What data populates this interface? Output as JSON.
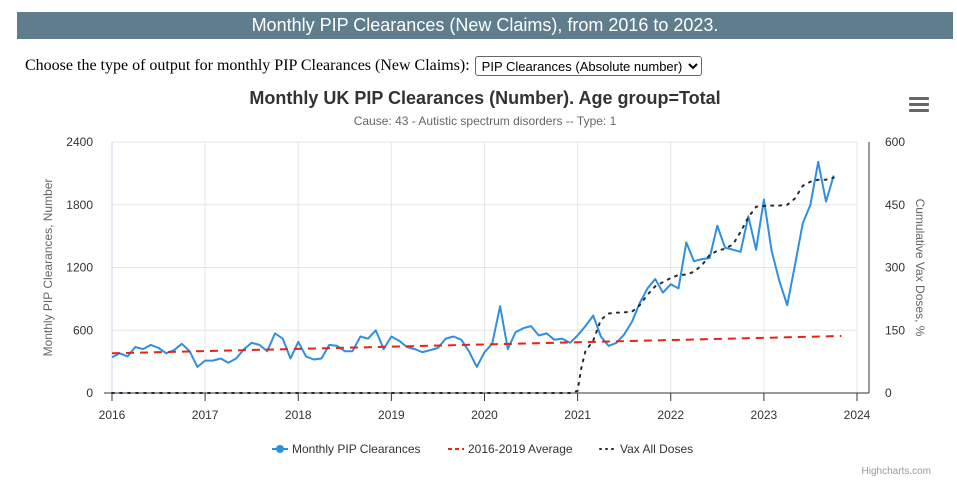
{
  "banner": {
    "title": "Monthly PIP Clearances (New Claims), from 2016 to 2023."
  },
  "selector": {
    "label": "Choose the type of output for monthly PIP Clearances (New Claims):",
    "selected": "PIP Clearances (Absolute number)"
  },
  "chart_data": {
    "type": "line",
    "title": "Monthly UK PIP Clearances (Number). Age group=Total",
    "subtitle": "Cause: 43 - Autistic spectrum disorders -- Type: 1",
    "ylabel": "Monthly PIP Clearances, Number",
    "y2label": "Cumulative Vax Doses, %",
    "ylim": [
      0,
      2400
    ],
    "y2lim": [
      0,
      600
    ],
    "xlim": [
      2016,
      2024
    ],
    "yticks": [
      "0",
      "600",
      "1200",
      "1800",
      "2400"
    ],
    "y2ticks": [
      "0",
      "150",
      "300",
      "450",
      "600"
    ],
    "xticks": [
      "2016",
      "2017",
      "2018",
      "2019",
      "2020",
      "2021",
      "2022",
      "2023",
      "2024"
    ],
    "grid": true,
    "legend_position": "bottom-center",
    "credits": "Highcharts.com",
    "series": [
      {
        "name": "Monthly PIP Clearances",
        "color": "#2f8fe0",
        "style": "solid-markers",
        "axis": "left",
        "x": [
          2016.0,
          2016.083,
          2016.167,
          2016.25,
          2016.333,
          2016.417,
          2016.5,
          2016.583,
          2016.667,
          2016.75,
          2016.833,
          2016.917,
          2017.0,
          2017.083,
          2017.167,
          2017.25,
          2017.333,
          2017.417,
          2017.5,
          2017.583,
          2017.667,
          2017.75,
          2017.833,
          2017.917,
          2018.0,
          2018.083,
          2018.167,
          2018.25,
          2018.333,
          2018.417,
          2018.5,
          2018.583,
          2018.667,
          2018.75,
          2018.833,
          2018.917,
          2019.0,
          2019.083,
          2019.167,
          2019.25,
          2019.333,
          2019.417,
          2019.5,
          2019.583,
          2019.667,
          2019.75,
          2019.833,
          2019.917,
          2020.0,
          2020.083,
          2020.167,
          2020.25,
          2020.333,
          2020.417,
          2020.5,
          2020.583,
          2020.667,
          2020.75,
          2020.833,
          2020.917,
          2021.0,
          2021.083,
          2021.167,
          2021.25,
          2021.333,
          2021.417,
          2021.5,
          2021.583,
          2021.667,
          2021.75,
          2021.833,
          2021.917,
          2022.0,
          2022.083,
          2022.167,
          2022.25,
          2022.333,
          2022.417,
          2022.5,
          2022.583,
          2022.667,
          2022.75,
          2022.833,
          2022.917,
          2023.0,
          2023.083,
          2023.167,
          2023.25,
          2023.333,
          2023.417,
          2023.5,
          2023.583,
          2023.667,
          2023.75
        ],
        "values": [
          340,
          380,
          350,
          440,
          420,
          460,
          430,
          380,
          410,
          470,
          400,
          250,
          310,
          310,
          330,
          290,
          330,
          420,
          480,
          460,
          400,
          570,
          520,
          330,
          490,
          350,
          320,
          330,
          460,
          450,
          400,
          400,
          540,
          520,
          600,
          420,
          540,
          500,
          440,
          420,
          390,
          410,
          430,
          520,
          540,
          510,
          400,
          250,
          390,
          470,
          830,
          420,
          580,
          620,
          640,
          550,
          570,
          510,
          520,
          480,
          550,
          640,
          740,
          540,
          450,
          480,
          560,
          680,
          860,
          1000,
          1090,
          960,
          1040,
          1000,
          1440,
          1260,
          1280,
          1290,
          1600,
          1390,
          1370,
          1350,
          1690,
          1370,
          1850,
          1360,
          1070,
          840,
          1220,
          1620,
          1800,
          2210,
          1830,
          2080
        ]
      },
      {
        "name": "2016-2019 Average",
        "color": "#e8231a",
        "style": "dashed",
        "axis": "left",
        "x": [
          2016.0,
          2023.833
        ],
        "values": [
          380,
          545
        ]
      },
      {
        "name": "Vax All Doses",
        "color": "#222b36",
        "style": "dotted",
        "axis": "right",
        "x": [
          2016.0,
          2020.833,
          2020.917,
          2021.0,
          2021.04,
          2021.083,
          2021.167,
          2021.25,
          2021.333,
          2021.417,
          2021.5,
          2021.583,
          2021.667,
          2021.75,
          2021.833,
          2021.917,
          2022.0,
          2022.083,
          2022.167,
          2022.25,
          2022.333,
          2022.417,
          2022.5,
          2022.583,
          2022.667,
          2022.75,
          2022.833,
          2022.917,
          2023.0,
          2023.083,
          2023.167,
          2023.25,
          2023.333,
          2023.417,
          2023.5,
          2023.583,
          2023.667,
          2023.75
        ],
        "values": [
          0,
          0,
          0,
          5,
          60,
          100,
          125,
          175,
          190,
          192,
          193,
          194,
          210,
          235,
          255,
          265,
          275,
          282,
          283,
          290,
          305,
          330,
          340,
          345,
          355,
          385,
          420,
          445,
          447,
          448,
          448,
          450,
          465,
          495,
          505,
          510,
          510,
          515
        ]
      }
    ]
  }
}
